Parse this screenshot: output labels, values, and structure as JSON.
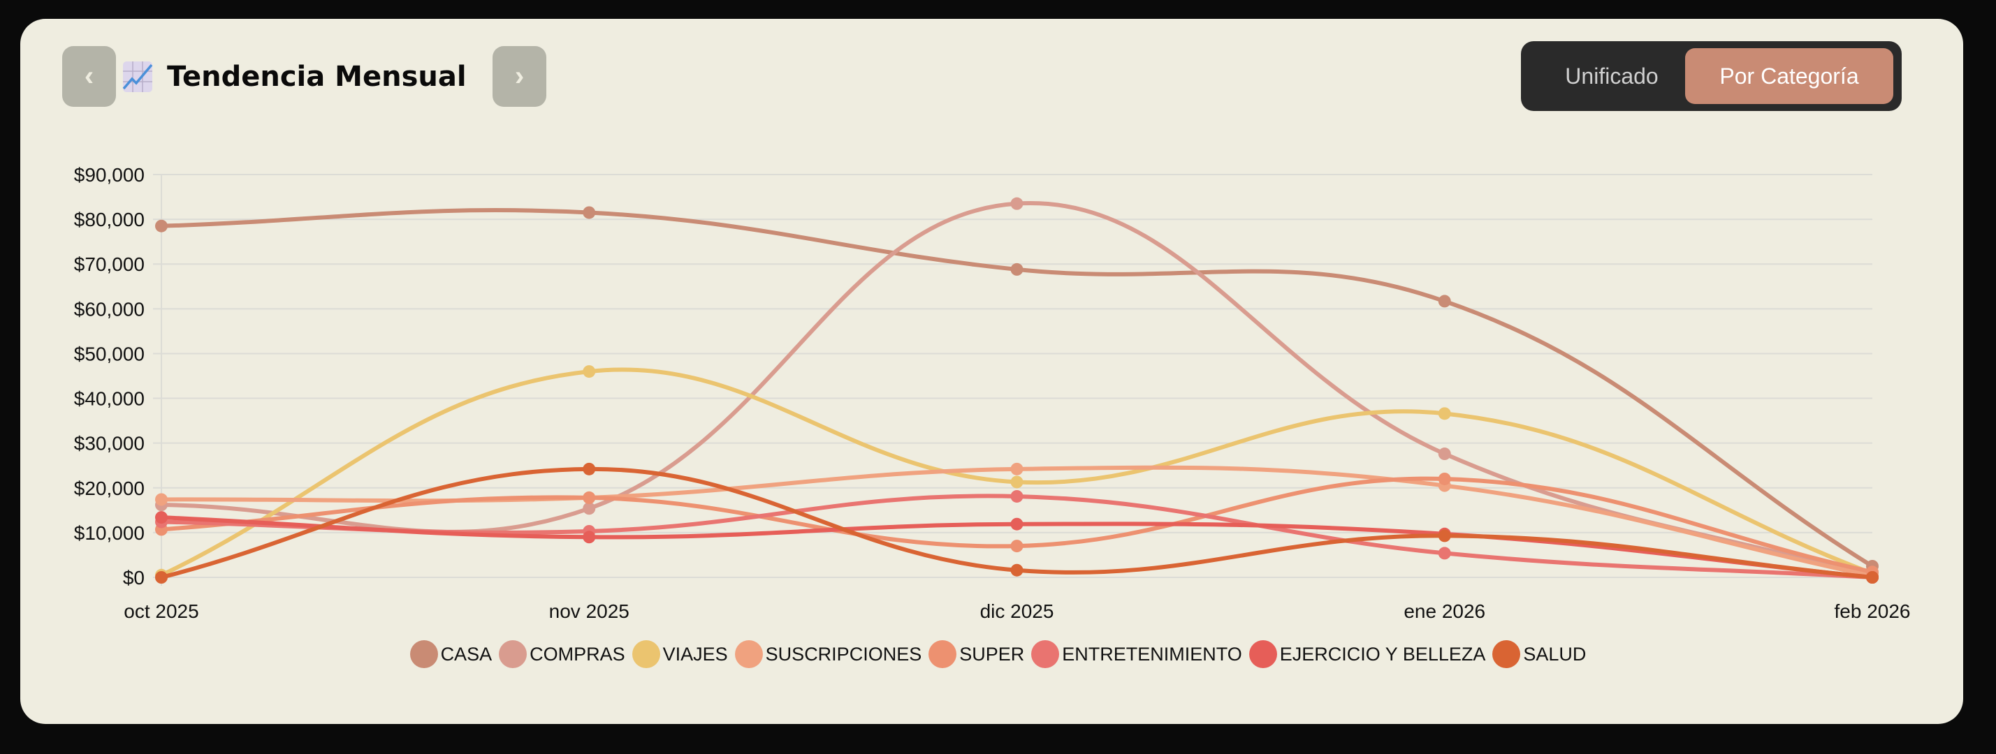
{
  "header": {
    "prev_label": "‹",
    "next_label": "›",
    "title_icon": "chart-increasing-icon",
    "title": "Tendencia Mensual"
  },
  "toggle": {
    "options": [
      "Unificado",
      "Por Categoría"
    ],
    "selected": "Por Categoría"
  },
  "chart_data": {
    "type": "line",
    "title": "",
    "xlabel": "",
    "ylabel": "",
    "categories": [
      "oct 2025",
      "nov 2025",
      "dic 2025",
      "ene 2026",
      "feb 2026"
    ],
    "ylim": [
      0,
      90000
    ],
    "yticks": [
      "$0",
      "$10,000",
      "$20,000",
      "$30,000",
      "$40,000",
      "$50,000",
      "$60,000",
      "$70,000",
      "$80,000",
      "$90,000"
    ],
    "grid": true,
    "legend_placement": "bottom",
    "series": [
      {
        "name": "CASA",
        "color": "#c98b74",
        "values": [
          78500,
          81500,
          68800,
          61700,
          2500
        ]
      },
      {
        "name": "COMPRAS",
        "color": "#d99c8f",
        "values": [
          16200,
          15400,
          83500,
          27600,
          0
        ]
      },
      {
        "name": "VIAJES",
        "color": "#ebc46f",
        "values": [
          500,
          46000,
          21300,
          36600,
          900
        ]
      },
      {
        "name": "SUSCRIPCIONES",
        "color": "#f0a27f",
        "values": [
          17400,
          17800,
          24200,
          20500,
          300
        ]
      },
      {
        "name": "SUPER",
        "color": "#ed9170",
        "values": [
          10700,
          17800,
          7000,
          22000,
          1200
        ]
      },
      {
        "name": "ENTRETENIMIENTO",
        "color": "#e97470",
        "values": [
          12400,
          10300,
          18100,
          5400,
          0
        ]
      },
      {
        "name": "EJERCICIO Y BELLEZA",
        "color": "#e65e58",
        "values": [
          13400,
          9000,
          11900,
          9700,
          0
        ]
      },
      {
        "name": "SALUD",
        "color": "#d96433",
        "values": [
          0,
          24200,
          1600,
          9300,
          0
        ]
      }
    ]
  }
}
